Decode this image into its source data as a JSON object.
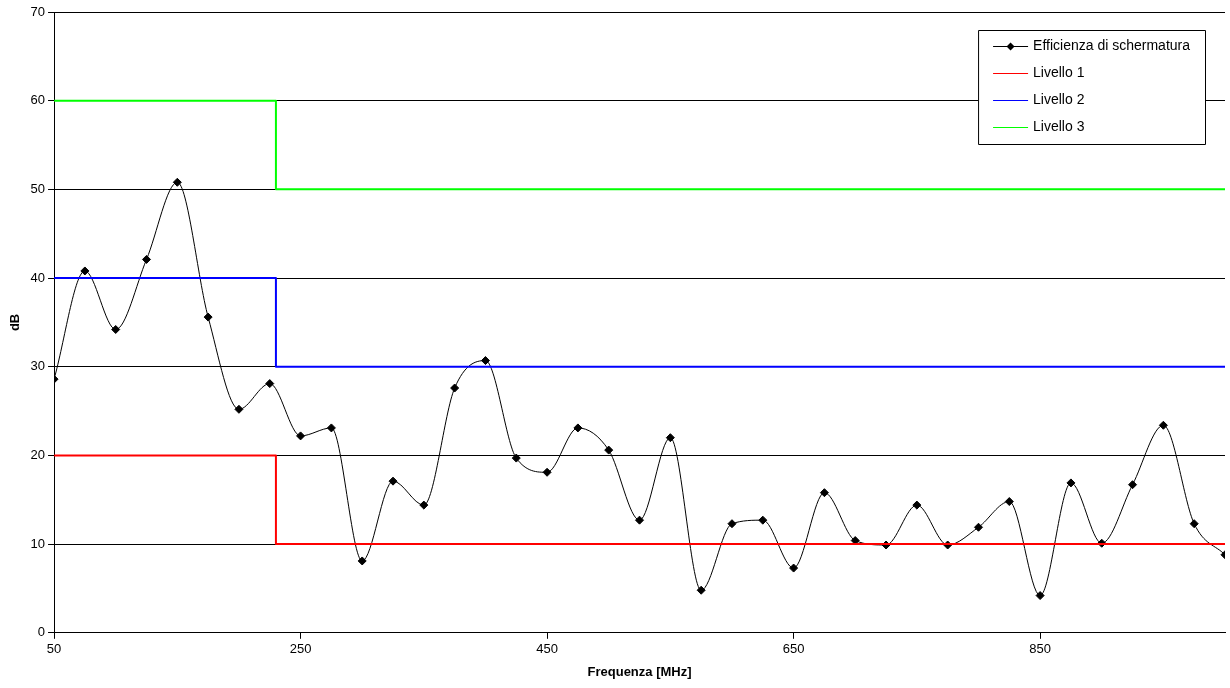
{
  "chart_data": {
    "type": "line",
    "xlabel": "Frequenza [MHz]",
    "ylabel": "dB",
    "xlim": [
      50,
      1000
    ],
    "xticks": [
      50,
      250,
      450,
      650,
      850
    ],
    "ylim": [
      0,
      70
    ],
    "yticks": [
      0,
      10,
      20,
      30,
      40,
      50,
      60,
      70
    ],
    "grid": "y",
    "legend": "top right",
    "line_style": "solid",
    "series": [
      {
        "name": "Efficienza di schermatura",
        "color": "#000000",
        "marker": "diamond",
        "x": [
          50,
          75,
          100,
          125,
          150,
          175,
          200,
          225,
          250,
          275,
          300,
          325,
          350,
          375,
          400,
          425,
          450,
          475,
          500,
          525,
          550,
          575,
          600,
          625,
          650,
          675,
          700,
          725,
          750,
          775,
          800,
          825,
          850,
          875,
          900,
          925,
          950,
          975,
          1000
        ],
        "values": [
          28.6,
          40.8,
          34.2,
          42.1,
          50.8,
          35.6,
          25.2,
          28.1,
          22.2,
          23.1,
          8.1,
          17.1,
          14.4,
          27.6,
          30.7,
          19.7,
          18.1,
          23.1,
          20.6,
          12.7,
          22.0,
          4.8,
          12.3,
          12.7,
          7.3,
          15.8,
          10.4,
          9.9,
          14.4,
          9.9,
          11.9,
          14.8,
          4.2,
          16.9,
          10.1,
          16.7,
          23.4,
          12.3,
          8.8
        ]
      },
      {
        "name": "Livello 1",
        "color": "#ff0000",
        "x": [
          50,
          230,
          230,
          1000
        ],
        "values": [
          20,
          20,
          10,
          10
        ]
      },
      {
        "name": "Livello 2",
        "color": "#0000ff",
        "x": [
          50,
          230,
          230,
          1000
        ],
        "values": [
          40,
          40,
          30,
          30
        ]
      },
      {
        "name": "Livello 3",
        "color": "#00ff00",
        "x": [
          50,
          230,
          230,
          1000
        ],
        "values": [
          60,
          60,
          50,
          50
        ]
      }
    ]
  }
}
